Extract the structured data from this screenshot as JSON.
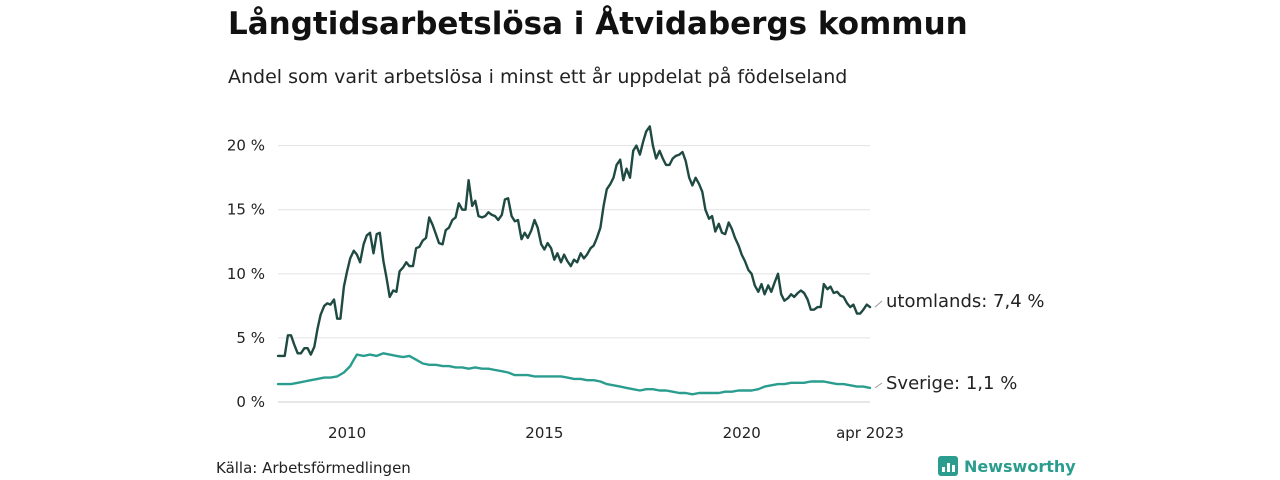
{
  "chart_data": {
    "type": "line",
    "title": "Långtidsarbetslösa i Åtvidabergs kommun",
    "subtitle": "Andel som varit arbetslösa i minst ett år uppdelat på födelseland",
    "ylim": [
      0,
      22
    ],
    "yticks": [
      0,
      5,
      10,
      15,
      20
    ],
    "ytick_labels": [
      "0 %",
      "5 %",
      "10 %",
      "15 %",
      "20 %"
    ],
    "xlim": [
      2008.25,
      2023.25
    ],
    "xticks": [
      2010,
      2015,
      2020,
      2023.25
    ],
    "xtick_labels": [
      "2010",
      "2015",
      "2020",
      "apr 2023"
    ],
    "grid": true,
    "series": [
      {
        "name": "utomlands",
        "end_label": "utomlands: 7,4 %",
        "color": "#1f4a42",
        "points": [
          [
            2008.25,
            3.6
          ],
          [
            2008.42,
            3.6
          ],
          [
            2008.5,
            5.2
          ],
          [
            2008.58,
            5.2
          ],
          [
            2008.67,
            4.4
          ],
          [
            2008.75,
            3.8
          ],
          [
            2008.83,
            3.8
          ],
          [
            2008.92,
            4.2
          ],
          [
            2009.0,
            4.2
          ],
          [
            2009.08,
            3.7
          ],
          [
            2009.17,
            4.3
          ],
          [
            2009.25,
            5.7
          ],
          [
            2009.33,
            6.8
          ],
          [
            2009.42,
            7.5
          ],
          [
            2009.5,
            7.7
          ],
          [
            2009.58,
            7.6
          ],
          [
            2009.67,
            8.0
          ],
          [
            2009.75,
            6.5
          ],
          [
            2009.83,
            6.5
          ],
          [
            2009.92,
            9.0
          ],
          [
            2010.0,
            10.2
          ],
          [
            2010.08,
            11.2
          ],
          [
            2010.17,
            11.8
          ],
          [
            2010.25,
            11.5
          ],
          [
            2010.33,
            10.9
          ],
          [
            2010.42,
            12.3
          ],
          [
            2010.5,
            13.0
          ],
          [
            2010.58,
            13.2
          ],
          [
            2010.67,
            11.6
          ],
          [
            2010.75,
            13.1
          ],
          [
            2010.83,
            13.2
          ],
          [
            2010.92,
            11.0
          ],
          [
            2011.0,
            9.7
          ],
          [
            2011.08,
            8.2
          ],
          [
            2011.17,
            8.7
          ],
          [
            2011.25,
            8.6
          ],
          [
            2011.33,
            10.2
          ],
          [
            2011.42,
            10.5
          ],
          [
            2011.5,
            10.9
          ],
          [
            2011.58,
            10.6
          ],
          [
            2011.67,
            10.6
          ],
          [
            2011.75,
            12.0
          ],
          [
            2011.83,
            12.1
          ],
          [
            2011.92,
            12.6
          ],
          [
            2012.0,
            12.8
          ],
          [
            2012.08,
            14.4
          ],
          [
            2012.17,
            13.8
          ],
          [
            2012.25,
            13.1
          ],
          [
            2012.33,
            12.4
          ],
          [
            2012.42,
            12.3
          ],
          [
            2012.5,
            13.4
          ],
          [
            2012.58,
            13.6
          ],
          [
            2012.67,
            14.2
          ],
          [
            2012.75,
            14.4
          ],
          [
            2012.83,
            15.5
          ],
          [
            2012.92,
            15.0
          ],
          [
            2013.0,
            15.0
          ],
          [
            2013.08,
            17.3
          ],
          [
            2013.17,
            15.3
          ],
          [
            2013.25,
            15.7
          ],
          [
            2013.33,
            14.5
          ],
          [
            2013.42,
            14.4
          ],
          [
            2013.5,
            14.5
          ],
          [
            2013.58,
            14.8
          ],
          [
            2013.67,
            14.6
          ],
          [
            2013.75,
            14.5
          ],
          [
            2013.83,
            14.2
          ],
          [
            2013.92,
            14.6
          ],
          [
            2014.0,
            15.8
          ],
          [
            2014.08,
            15.9
          ],
          [
            2014.17,
            14.5
          ],
          [
            2014.25,
            14.1
          ],
          [
            2014.33,
            14.2
          ],
          [
            2014.42,
            12.7
          ],
          [
            2014.5,
            13.2
          ],
          [
            2014.58,
            12.8
          ],
          [
            2014.67,
            13.4
          ],
          [
            2014.75,
            14.2
          ],
          [
            2014.83,
            13.6
          ],
          [
            2014.92,
            12.3
          ],
          [
            2015.0,
            11.9
          ],
          [
            2015.08,
            12.4
          ],
          [
            2015.17,
            12.0
          ],
          [
            2015.25,
            11.1
          ],
          [
            2015.33,
            11.6
          ],
          [
            2015.42,
            10.9
          ],
          [
            2015.5,
            11.5
          ],
          [
            2015.58,
            11.0
          ],
          [
            2015.67,
            10.6
          ],
          [
            2015.75,
            11.1
          ],
          [
            2015.83,
            10.9
          ],
          [
            2015.92,
            11.6
          ],
          [
            2016.0,
            11.2
          ],
          [
            2016.08,
            11.5
          ],
          [
            2016.17,
            12.0
          ],
          [
            2016.25,
            12.2
          ],
          [
            2016.33,
            12.8
          ],
          [
            2016.42,
            13.6
          ],
          [
            2016.5,
            15.3
          ],
          [
            2016.58,
            16.6
          ],
          [
            2016.67,
            17.0
          ],
          [
            2016.75,
            17.5
          ],
          [
            2016.83,
            18.5
          ],
          [
            2016.92,
            18.9
          ],
          [
            2017.0,
            17.3
          ],
          [
            2017.08,
            18.2
          ],
          [
            2017.17,
            17.5
          ],
          [
            2017.25,
            19.6
          ],
          [
            2017.33,
            20.0
          ],
          [
            2017.42,
            19.3
          ],
          [
            2017.5,
            20.3
          ],
          [
            2017.58,
            21.1
          ],
          [
            2017.67,
            21.5
          ],
          [
            2017.75,
            20.0
          ],
          [
            2017.83,
            19.0
          ],
          [
            2017.92,
            19.6
          ],
          [
            2018.0,
            19.0
          ],
          [
            2018.08,
            18.5
          ],
          [
            2018.17,
            18.5
          ],
          [
            2018.25,
            19.0
          ],
          [
            2018.33,
            19.2
          ],
          [
            2018.42,
            19.3
          ],
          [
            2018.5,
            19.5
          ],
          [
            2018.58,
            18.8
          ],
          [
            2018.67,
            17.5
          ],
          [
            2018.75,
            16.9
          ],
          [
            2018.83,
            17.5
          ],
          [
            2018.92,
            17.0
          ],
          [
            2019.0,
            16.4
          ],
          [
            2019.08,
            15.0
          ],
          [
            2019.17,
            14.3
          ],
          [
            2019.25,
            14.5
          ],
          [
            2019.33,
            13.3
          ],
          [
            2019.42,
            13.9
          ],
          [
            2019.5,
            13.2
          ],
          [
            2019.58,
            13.1
          ],
          [
            2019.67,
            14.0
          ],
          [
            2019.75,
            13.5
          ],
          [
            2019.83,
            12.8
          ],
          [
            2019.92,
            12.2
          ],
          [
            2020.0,
            11.5
          ],
          [
            2020.08,
            11.0
          ],
          [
            2020.17,
            10.3
          ],
          [
            2020.25,
            10.0
          ],
          [
            2020.33,
            9.1
          ],
          [
            2020.42,
            8.6
          ],
          [
            2020.5,
            9.2
          ],
          [
            2020.58,
            8.4
          ],
          [
            2020.67,
            9.1
          ],
          [
            2020.75,
            8.6
          ],
          [
            2020.83,
            9.3
          ],
          [
            2020.92,
            10.0
          ],
          [
            2021.0,
            8.4
          ],
          [
            2021.08,
            7.9
          ],
          [
            2021.17,
            8.1
          ],
          [
            2021.25,
            8.4
          ],
          [
            2021.33,
            8.2
          ],
          [
            2021.42,
            8.5
          ],
          [
            2021.5,
            8.7
          ],
          [
            2021.58,
            8.5
          ],
          [
            2021.67,
            8.0
          ],
          [
            2021.75,
            7.2
          ],
          [
            2021.83,
            7.2
          ],
          [
            2021.92,
            7.4
          ],
          [
            2022.0,
            7.4
          ],
          [
            2022.08,
            9.2
          ],
          [
            2022.17,
            8.8
          ],
          [
            2022.25,
            9.0
          ],
          [
            2022.33,
            8.5
          ],
          [
            2022.42,
            8.6
          ],
          [
            2022.5,
            8.3
          ],
          [
            2022.58,
            8.2
          ],
          [
            2022.67,
            7.7
          ],
          [
            2022.75,
            7.4
          ],
          [
            2022.83,
            7.6
          ],
          [
            2022.92,
            6.9
          ],
          [
            2023.0,
            6.9
          ],
          [
            2023.08,
            7.2
          ],
          [
            2023.17,
            7.6
          ],
          [
            2023.25,
            7.4
          ]
        ]
      },
      {
        "name": "Sverige",
        "end_label": "Sverige: 1,1 %",
        "color": "#2a9d8f",
        "points": [
          [
            2008.25,
            1.4
          ],
          [
            2008.42,
            1.4
          ],
          [
            2008.58,
            1.4
          ],
          [
            2008.75,
            1.5
          ],
          [
            2008.92,
            1.6
          ],
          [
            2009.08,
            1.7
          ],
          [
            2009.25,
            1.8
          ],
          [
            2009.42,
            1.9
          ],
          [
            2009.58,
            1.9
          ],
          [
            2009.75,
            2.0
          ],
          [
            2009.92,
            2.3
          ],
          [
            2010.08,
            2.8
          ],
          [
            2010.17,
            3.3
          ],
          [
            2010.25,
            3.7
          ],
          [
            2010.42,
            3.6
          ],
          [
            2010.58,
            3.7
          ],
          [
            2010.75,
            3.6
          ],
          [
            2010.92,
            3.8
          ],
          [
            2011.08,
            3.7
          ],
          [
            2011.25,
            3.6
          ],
          [
            2011.42,
            3.5
          ],
          [
            2011.58,
            3.6
          ],
          [
            2011.75,
            3.3
          ],
          [
            2011.92,
            3.0
          ],
          [
            2012.08,
            2.9
          ],
          [
            2012.25,
            2.9
          ],
          [
            2012.42,
            2.8
          ],
          [
            2012.58,
            2.8
          ],
          [
            2012.75,
            2.7
          ],
          [
            2012.92,
            2.7
          ],
          [
            2013.08,
            2.6
          ],
          [
            2013.25,
            2.7
          ],
          [
            2013.42,
            2.6
          ],
          [
            2013.58,
            2.6
          ],
          [
            2013.75,
            2.5
          ],
          [
            2013.92,
            2.4
          ],
          [
            2014.08,
            2.3
          ],
          [
            2014.25,
            2.1
          ],
          [
            2014.42,
            2.1
          ],
          [
            2014.58,
            2.1
          ],
          [
            2014.75,
            2.0
          ],
          [
            2014.92,
            2.0
          ],
          [
            2015.08,
            2.0
          ],
          [
            2015.25,
            2.0
          ],
          [
            2015.42,
            2.0
          ],
          [
            2015.58,
            1.9
          ],
          [
            2015.75,
            1.8
          ],
          [
            2015.92,
            1.8
          ],
          [
            2016.08,
            1.7
          ],
          [
            2016.25,
            1.7
          ],
          [
            2016.42,
            1.6
          ],
          [
            2016.58,
            1.4
          ],
          [
            2016.75,
            1.3
          ],
          [
            2016.92,
            1.2
          ],
          [
            2017.08,
            1.1
          ],
          [
            2017.25,
            1.0
          ],
          [
            2017.42,
            0.9
          ],
          [
            2017.58,
            1.0
          ],
          [
            2017.75,
            1.0
          ],
          [
            2017.92,
            0.9
          ],
          [
            2018.08,
            0.9
          ],
          [
            2018.25,
            0.8
          ],
          [
            2018.42,
            0.7
          ],
          [
            2018.58,
            0.7
          ],
          [
            2018.75,
            0.6
          ],
          [
            2018.92,
            0.7
          ],
          [
            2019.08,
            0.7
          ],
          [
            2019.25,
            0.7
          ],
          [
            2019.42,
            0.7
          ],
          [
            2019.58,
            0.8
          ],
          [
            2019.75,
            0.8
          ],
          [
            2019.92,
            0.9
          ],
          [
            2020.08,
            0.9
          ],
          [
            2020.25,
            0.9
          ],
          [
            2020.42,
            1.0
          ],
          [
            2020.58,
            1.2
          ],
          [
            2020.75,
            1.3
          ],
          [
            2020.92,
            1.4
          ],
          [
            2021.08,
            1.4
          ],
          [
            2021.25,
            1.5
          ],
          [
            2021.42,
            1.5
          ],
          [
            2021.58,
            1.5
          ],
          [
            2021.75,
            1.6
          ],
          [
            2021.92,
            1.6
          ],
          [
            2022.08,
            1.6
          ],
          [
            2022.25,
            1.5
          ],
          [
            2022.42,
            1.4
          ],
          [
            2022.58,
            1.4
          ],
          [
            2022.75,
            1.3
          ],
          [
            2022.92,
            1.2
          ],
          [
            2023.08,
            1.2
          ],
          [
            2023.25,
            1.1
          ]
        ]
      }
    ]
  },
  "source": "Källa: Arbetsförmedlingen",
  "brand": "Newsworthy"
}
